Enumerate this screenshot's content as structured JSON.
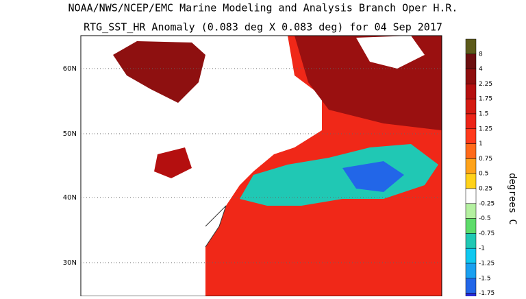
{
  "header": {
    "title": "NOAA/NWS/NCEP/EMC Marine Modeling and Analysis Branch Oper H.R.",
    "subtitle": "RTG_SST_HR Anomaly (0.083 deg X 0.083 deg) for 04 Sep 2017"
  },
  "map": {
    "lat_labels": [
      "60N",
      "50N",
      "40N",
      "30N"
    ]
  },
  "colorbar": {
    "title": "degrees C",
    "labels": [
      "8",
      "4",
      "2.25",
      "1.75",
      "1.5",
      "1.25",
      "1",
      "0.75",
      "0.5",
      "0.25",
      "-0.25",
      "-0.5",
      "-0.75",
      "-1",
      "-1.25",
      "-1.5",
      "-1.75"
    ],
    "colors": [
      "#5c5a1a",
      "#6b0f0f",
      "#8e0e0e",
      "#b40f0f",
      "#d41a12",
      "#ec2418",
      "#ff3a1c",
      "#ff6a1a",
      "#ffa31a",
      "#ffd21a",
      "#ffffff",
      "#b4f0a0",
      "#5ddc6a",
      "#20c8b4",
      "#10c8f0",
      "#1aa0f0",
      "#2266e8",
      "#2a2ad8"
    ]
  }
}
